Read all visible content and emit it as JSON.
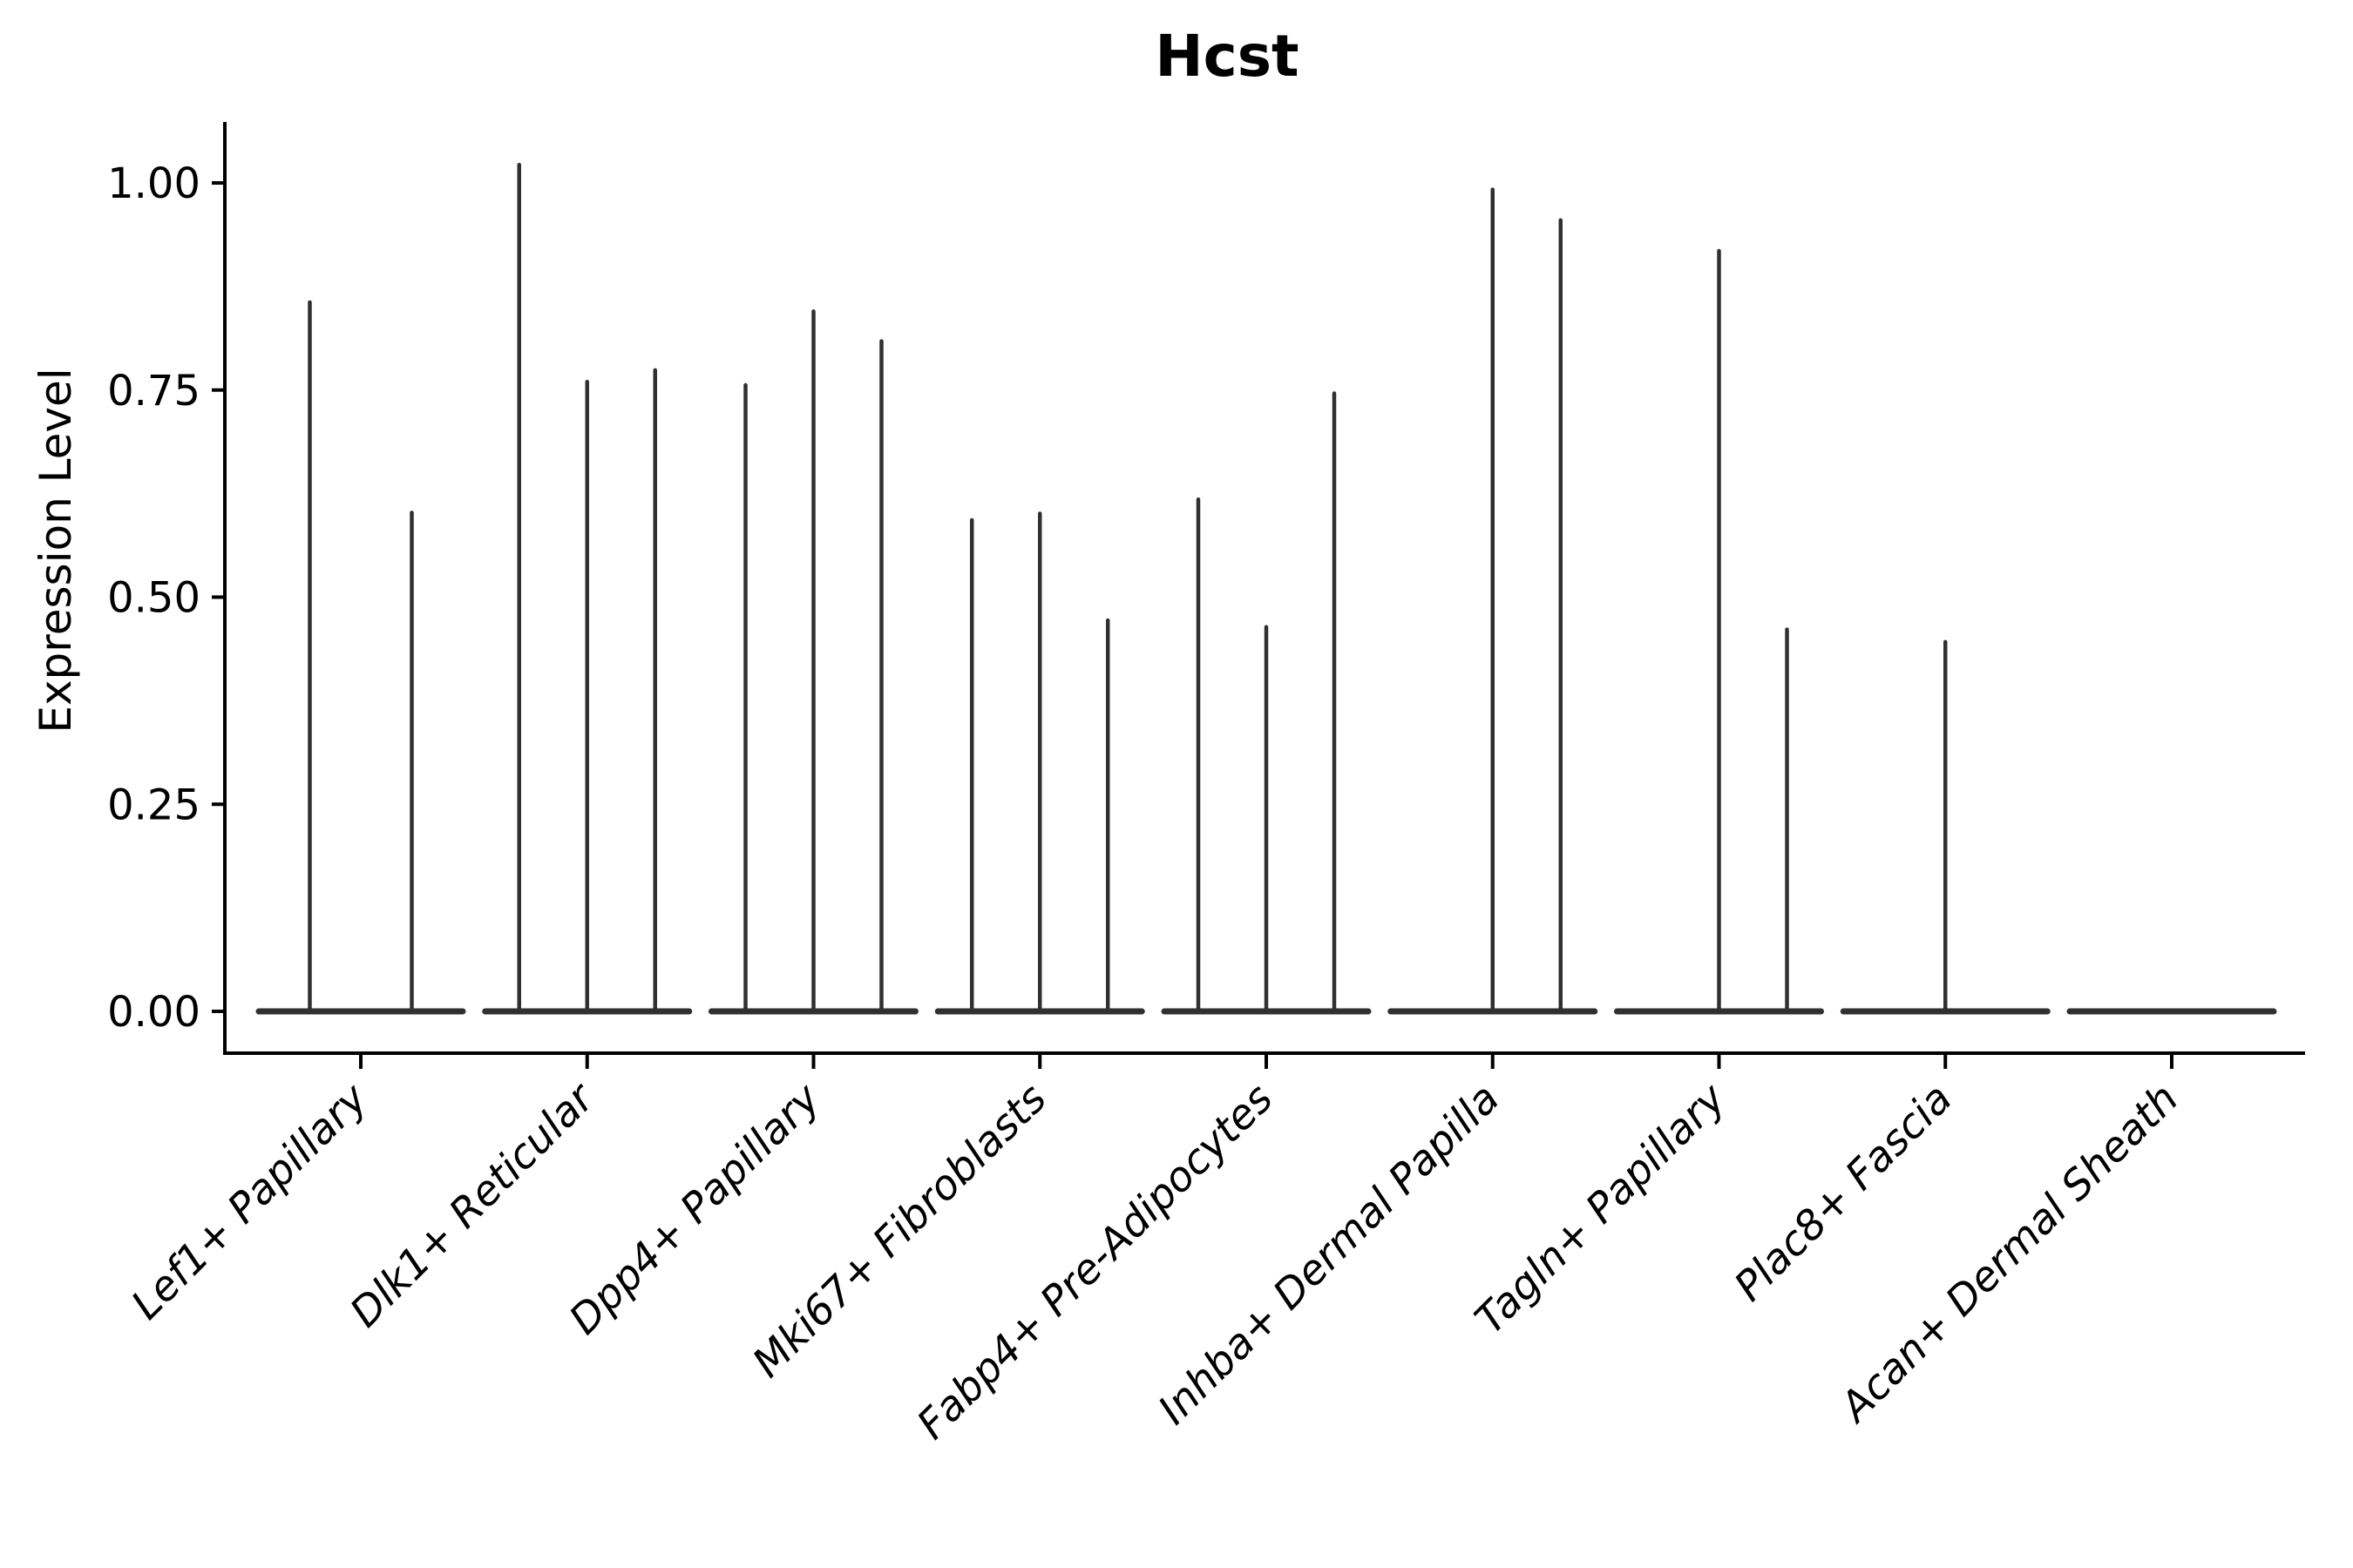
{
  "figure": {
    "background": "#ffffff"
  },
  "chart_data": {
    "type": "violin",
    "title": "Hcst",
    "ylabel": "Expression Level",
    "xlabel": "",
    "ylim": [
      0.0,
      1.08
    ],
    "grid": false,
    "legend": null,
    "yticks": [
      {
        "value": 0.0,
        "label": "0.00"
      },
      {
        "value": 0.25,
        "label": "0.25"
      },
      {
        "value": 0.5,
        "label": "0.50"
      },
      {
        "value": 0.75,
        "label": "0.75"
      },
      {
        "value": 1.0,
        "label": "1.00"
      }
    ],
    "categories": [
      {
        "label": "Lef1+ Papillary",
        "violins": [
          {
            "dx": -58.5,
            "peak": 0.856
          },
          {
            "dx": 58.5,
            "peak": 0.602
          }
        ]
      },
      {
        "label": "Dlk1+ Reticular",
        "violins": [
          {
            "dx": -78,
            "peak": 1.022
          },
          {
            "dx": 0,
            "peak": 0.76
          },
          {
            "dx": 78,
            "peak": 0.774
          }
        ]
      },
      {
        "label": "Dpp4+ Papillary",
        "violins": [
          {
            "dx": -78,
            "peak": 0.756
          },
          {
            "dx": 0,
            "peak": 0.845
          },
          {
            "dx": 78,
            "peak": 0.809
          }
        ]
      },
      {
        "label": "Mki67+ Fibroblasts",
        "violins": [
          {
            "dx": -78,
            "peak": 0.593
          },
          {
            "dx": 0,
            "peak": 0.601
          },
          {
            "dx": 78,
            "peak": 0.472
          }
        ]
      },
      {
        "label": "Fabp4+ Pre-Adipocytes",
        "violins": [
          {
            "dx": -78,
            "peak": 0.618
          },
          {
            "dx": 0,
            "peak": 0.464
          },
          {
            "dx": 78,
            "peak": 0.746
          }
        ]
      },
      {
        "label": "Inhba+ Dermal Papilla",
        "violins": [
          {
            "dx": 0,
            "peak": 0.992
          },
          {
            "dx": 78,
            "peak": 0.955
          }
        ]
      },
      {
        "label": "Tagln+ Papillary",
        "violins": [
          {
            "dx": 0,
            "peak": 0.918
          },
          {
            "dx": 78,
            "peak": 0.461
          }
        ]
      },
      {
        "label": "Plac8+ Fascia",
        "violins": [
          {
            "dx": 0,
            "peak": 0.446
          }
        ]
      },
      {
        "label": "Acan+ Dermal Sheath",
        "violins": []
      }
    ],
    "colors": {
      "violin": "#303030",
      "axis": "#000000",
      "text": "#000000"
    }
  }
}
